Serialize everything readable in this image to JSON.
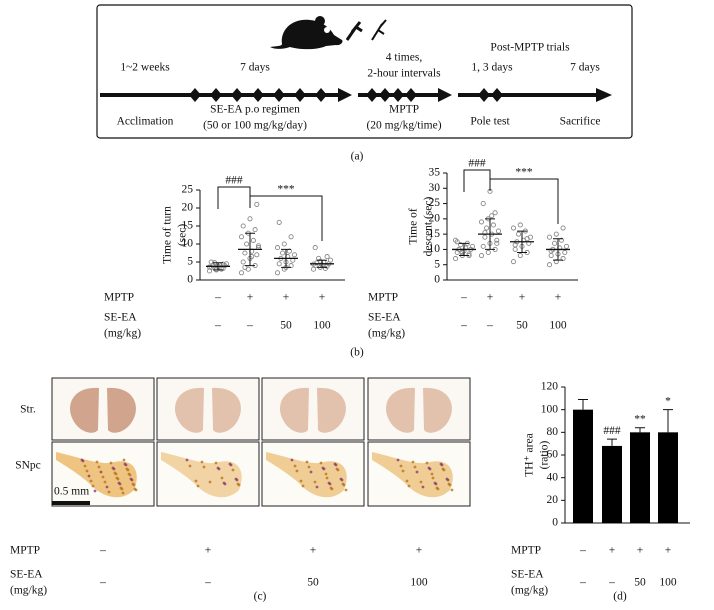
{
  "timeline": {
    "post_label": "Post-MPTP trials",
    "phases": [
      {
        "above": [
          "1~2 weeks"
        ],
        "below": [
          "Acclimation"
        ]
      },
      {
        "above": [
          "7 days"
        ],
        "below": [
          "SE-EA p.o regimen",
          "(50 or 100 mg/kg/day)"
        ]
      },
      {
        "above": [
          "4 times,",
          "2-hour intervals"
        ],
        "below": [
          "MPTP",
          "(20 mg/kg/time)"
        ]
      },
      {
        "above": [
          "1, 3 days"
        ],
        "below": [
          "Pole test"
        ]
      },
      {
        "above": [
          "7 days"
        ],
        "below": [
          "Sacrifice"
        ]
      }
    ],
    "caption": "(a)"
  },
  "chart_data": [
    {
      "type": "dot_plot",
      "ylabel": [
        "Time of turn",
        "(sec)"
      ],
      "ylim": [
        0,
        25
      ],
      "yticks": [
        0,
        5,
        10,
        15,
        20,
        25
      ],
      "color": "#888888",
      "groups": [
        {
          "points": [
            2.5,
            3,
            3.2,
            3.5,
            3.8,
            4,
            4,
            4.2,
            4.5,
            4.8,
            3,
            3.6,
            2.8,
            4.4,
            5
          ],
          "mean": 3.8,
          "sd": 1
        },
        {
          "points": [
            2,
            3,
            4,
            5,
            6,
            7,
            7.5,
            8,
            9,
            10,
            11,
            12,
            13,
            14,
            15,
            17,
            21,
            3.5,
            6.5,
            9.5
          ],
          "mean": 8.5,
          "sd": 4.5
        },
        {
          "points": [
            2,
            3,
            4,
            4.5,
            5,
            5.5,
            6,
            6.5,
            7,
            7.5,
            8,
            9,
            10,
            12,
            16,
            3.5
          ],
          "mean": 6,
          "sd": 2.5
        },
        {
          "points": [
            3,
            3.5,
            3.8,
            4,
            4.2,
            4.5,
            4.8,
            5,
            5.5,
            6,
            3.2,
            4.4,
            5.2,
            6.5,
            9
          ],
          "mean": 4.5,
          "sd": 1
        }
      ],
      "brackets": [
        "###",
        "***"
      ],
      "treatments": [
        {
          "label": [
            "MPTP"
          ],
          "values": [
            "–",
            "+",
            "+",
            "+"
          ]
        },
        {
          "label": [
            "SE-EA",
            "(mg/kg)"
          ],
          "values": [
            "–",
            "–",
            "50",
            "100"
          ]
        }
      ]
    },
    {
      "type": "dot_plot",
      "ylabel": [
        "Time of",
        "descent (sec)"
      ],
      "ylim": [
        0,
        35
      ],
      "yticks": [
        0,
        5,
        10,
        15,
        20,
        25,
        30,
        35
      ],
      "color": "#888888",
      "groups": [
        {
          "points": [
            7,
            8,
            8.5,
            9,
            9.5,
            10,
            10,
            10.5,
            11,
            11.5,
            12,
            13,
            9,
            8,
            12.5
          ],
          "mean": 10,
          "sd": 2
        },
        {
          "points": [
            8,
            9,
            10,
            11,
            12,
            13,
            14,
            15,
            16,
            17,
            18,
            19,
            20,
            22,
            25,
            29,
            12,
            15.5,
            21
          ],
          "mean": 15,
          "sd": 5
        },
        {
          "points": [
            6,
            8,
            9,
            10,
            11,
            12,
            12.5,
            13,
            14,
            15,
            16,
            17,
            18,
            13.5,
            11.5
          ],
          "mean": 12.5,
          "sd": 3.5
        },
        {
          "points": [
            5,
            6,
            7,
            8,
            8.5,
            9,
            10,
            10.5,
            11,
            12,
            13,
            14,
            15,
            17,
            9.5
          ],
          "mean": 10,
          "sd": 3.5
        }
      ],
      "brackets": [
        "###",
        "***"
      ],
      "treatments": [
        {
          "label": [
            "MPTP"
          ],
          "values": [
            "–",
            "+",
            "+",
            "+"
          ]
        },
        {
          "label": [
            "SE-EA",
            "(mg/kg)"
          ],
          "values": [
            "–",
            "–",
            "50",
            "100"
          ]
        }
      ]
    },
    {
      "type": "bar",
      "ylabel": [
        "TH⁺ area",
        "(ratio)"
      ],
      "ylim": [
        0,
        120
      ],
      "yticks": [
        0,
        20,
        40,
        60,
        80,
        100,
        120
      ],
      "color": "#000000",
      "values": [
        100,
        68,
        80,
        80
      ],
      "errors": [
        9,
        6,
        4,
        20
      ],
      "significance": [
        null,
        "###",
        "**",
        "*"
      ],
      "treatments": [
        {
          "label": [
            "MPTP"
          ],
          "values": [
            "–",
            "+",
            "+",
            "+"
          ]
        },
        {
          "label": [
            "SE-EA",
            "(mg/kg)"
          ],
          "values": [
            "–",
            "–",
            "50",
            "100"
          ]
        }
      ]
    }
  ],
  "captions": {
    "b": "(b)",
    "d": "(d)"
  },
  "images": {
    "rows": [
      "Str.",
      "SNpc"
    ],
    "scale_bar": "0.5 mm",
    "treatments": [
      {
        "label": [
          "MPTP"
        ],
        "values": [
          "–",
          "+",
          "+",
          "+"
        ]
      },
      {
        "label": [
          "SE-EA",
          "(mg/kg)"
        ],
        "values": [
          "–",
          "–",
          "50",
          "100"
        ]
      }
    ],
    "caption": "(c)"
  }
}
